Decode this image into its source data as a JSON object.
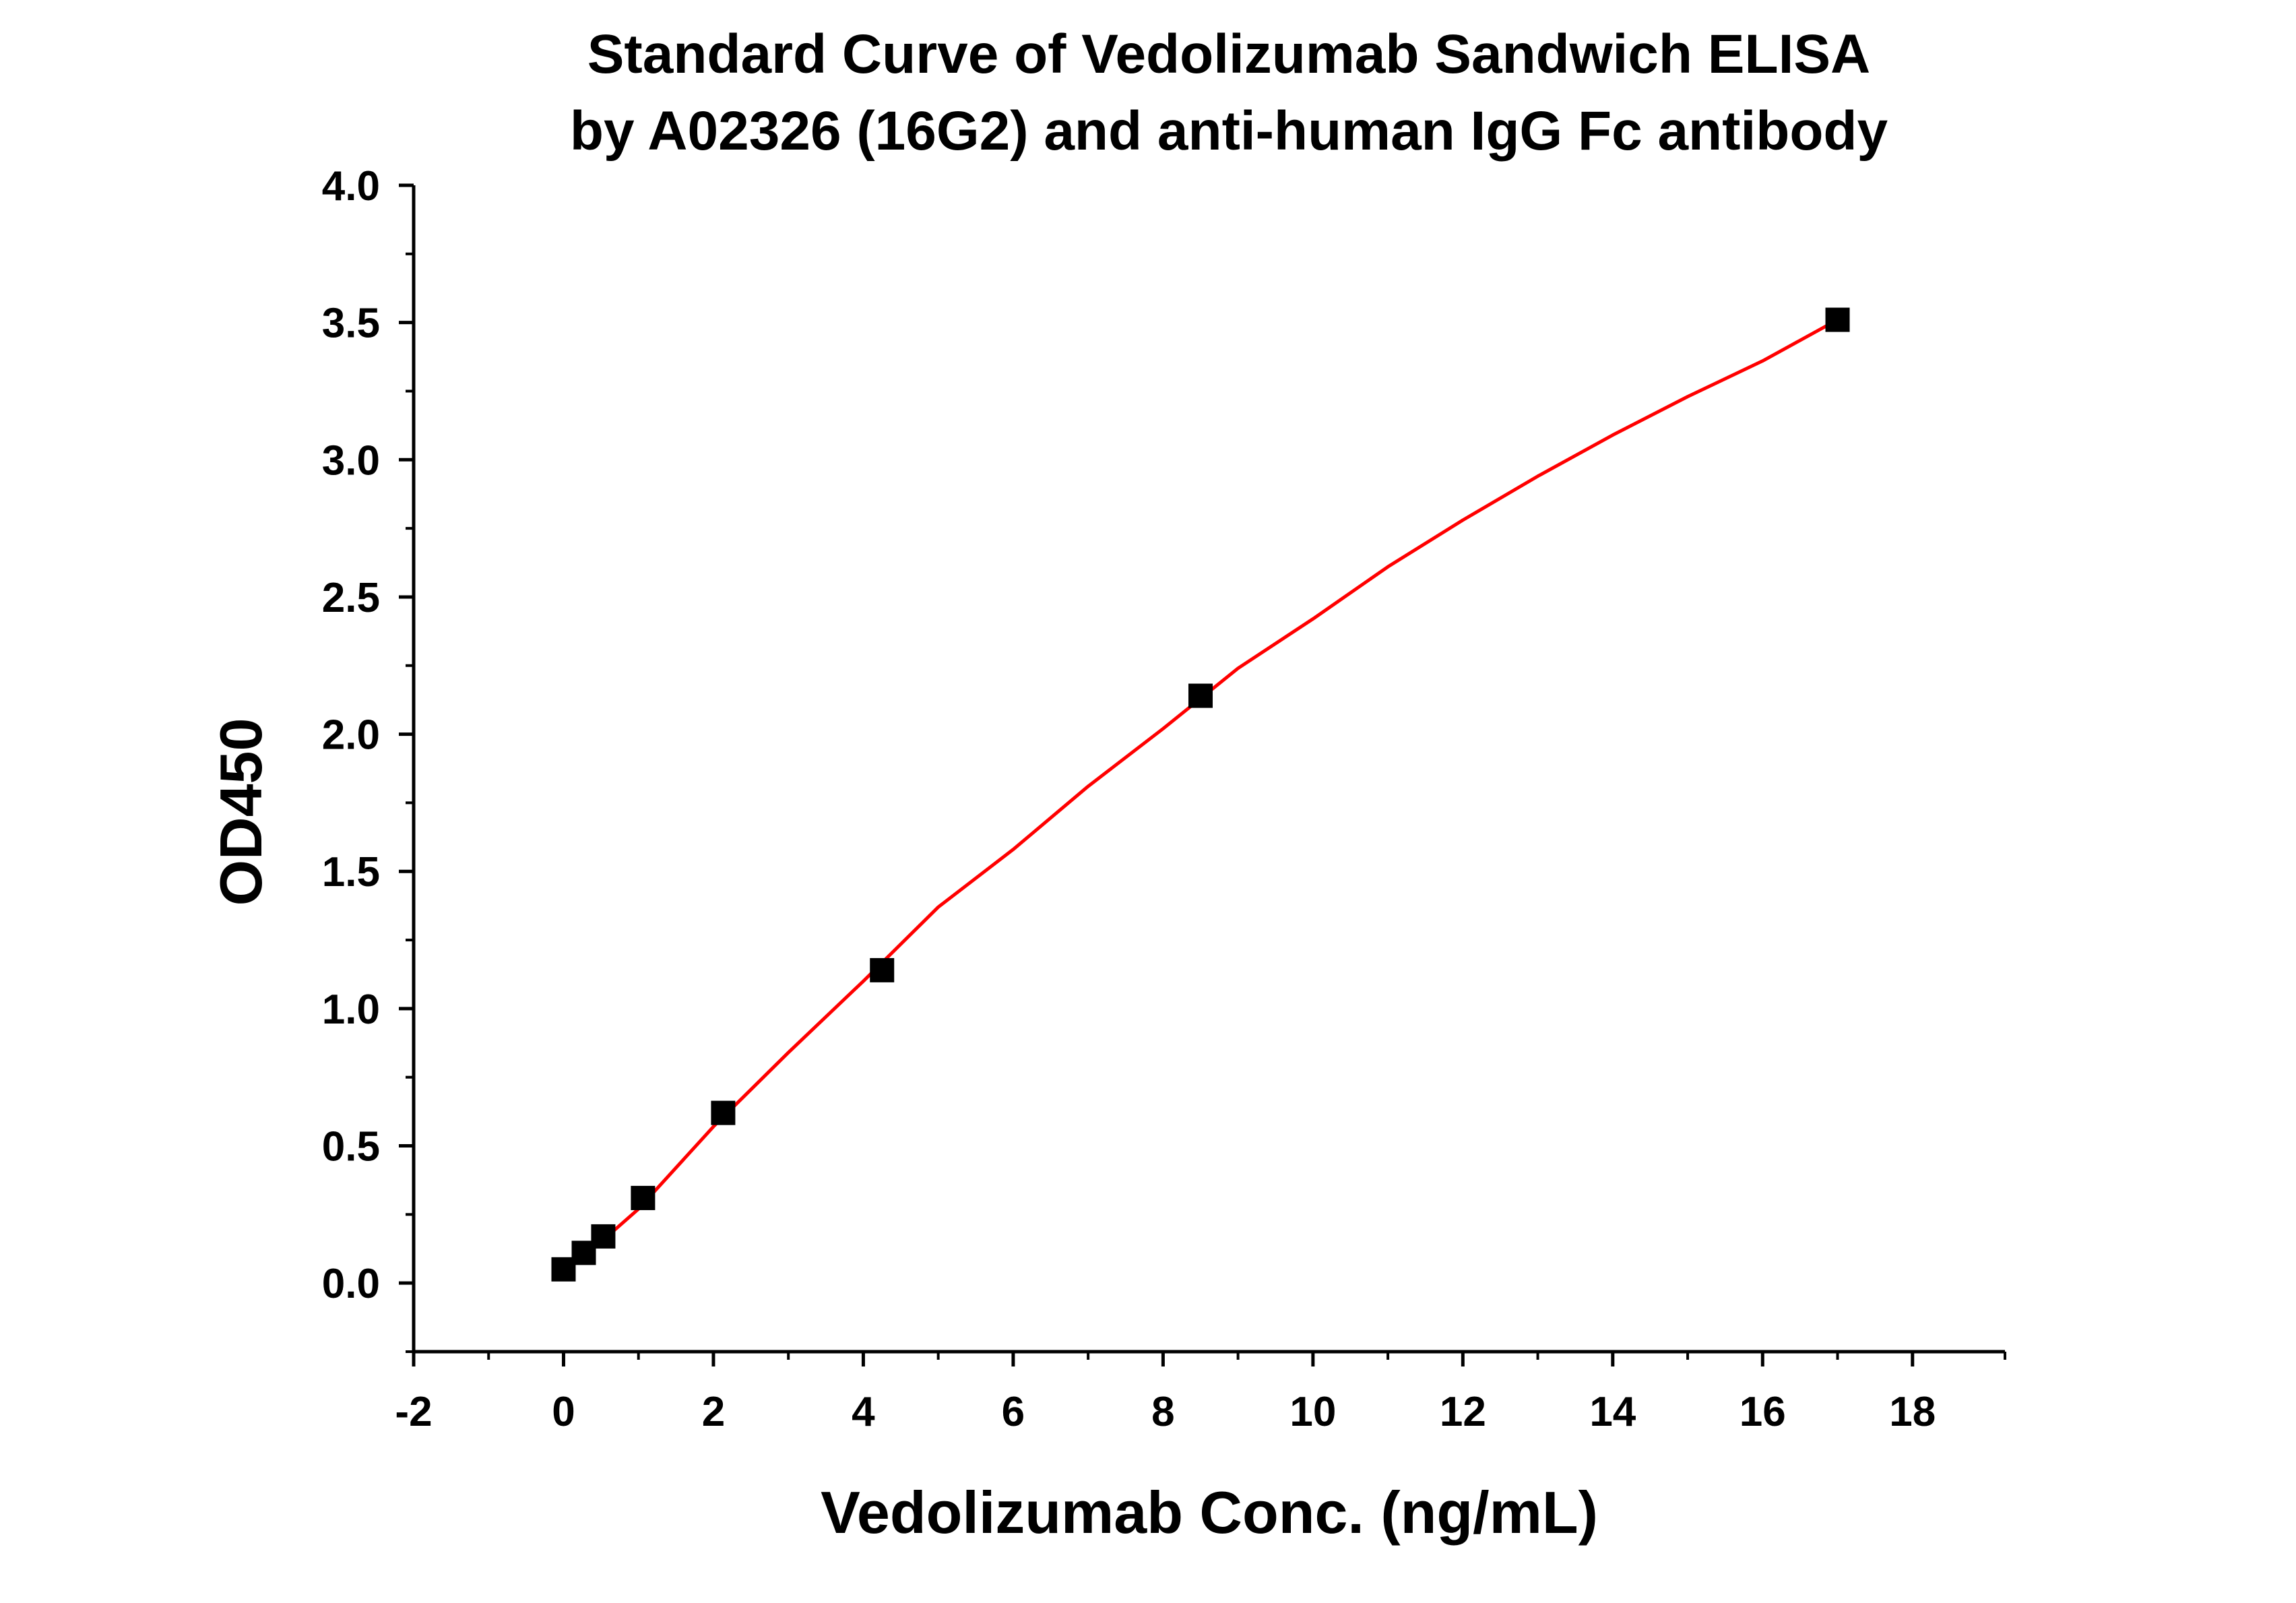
{
  "chart_data": {
    "type": "scatter",
    "title": [
      "Standard Curve of Vedolizumab Sandwich ELISA",
      "by A02326 (16G2) and anti-human IgG Fc antibody"
    ],
    "xlabel": "Vedolizumab Conc. (ng/mL)",
    "ylabel": "OD450",
    "xlim": [
      -2,
      19
    ],
    "ylim": [
      -0.25,
      4.0
    ],
    "xticks": [
      -2,
      0,
      2,
      4,
      6,
      8,
      10,
      12,
      14,
      16,
      18
    ],
    "xtick_labels": [
      "-2",
      "0",
      "2",
      "4",
      "6",
      "8",
      "10",
      "12",
      "14",
      "16",
      "18"
    ],
    "yticks": [
      0.0,
      0.5,
      1.0,
      1.5,
      2.0,
      2.5,
      3.0,
      3.5,
      4.0
    ],
    "ytick_labels": [
      "0.0",
      "0.5",
      "1.0",
      "1.5",
      "2.0",
      "2.5",
      "3.0",
      "3.5",
      "4.0"
    ],
    "grid": false,
    "series": [
      {
        "kind": "points",
        "marker": "square",
        "color": "#000000",
        "x": [
          0,
          0.27,
          0.53,
          1.06,
          2.13,
          4.25,
          8.5,
          17
        ],
        "y": [
          0.05,
          0.11,
          0.17,
          0.31,
          0.62,
          1.14,
          2.14,
          3.51
        ]
      },
      {
        "kind": "fit-curve",
        "color": "#ff0000",
        "x": [
          0,
          0.5,
          1,
          2,
          3,
          4,
          5,
          6,
          7,
          8,
          9,
          10,
          11,
          12,
          13,
          14,
          15,
          16,
          17
        ],
        "y": [
          0.04,
          0.15,
          0.27,
          0.57,
          0.84,
          1.1,
          1.37,
          1.58,
          1.81,
          2.02,
          2.24,
          2.42,
          2.61,
          2.78,
          2.94,
          3.09,
          3.23,
          3.36,
          3.51
        ]
      }
    ]
  }
}
